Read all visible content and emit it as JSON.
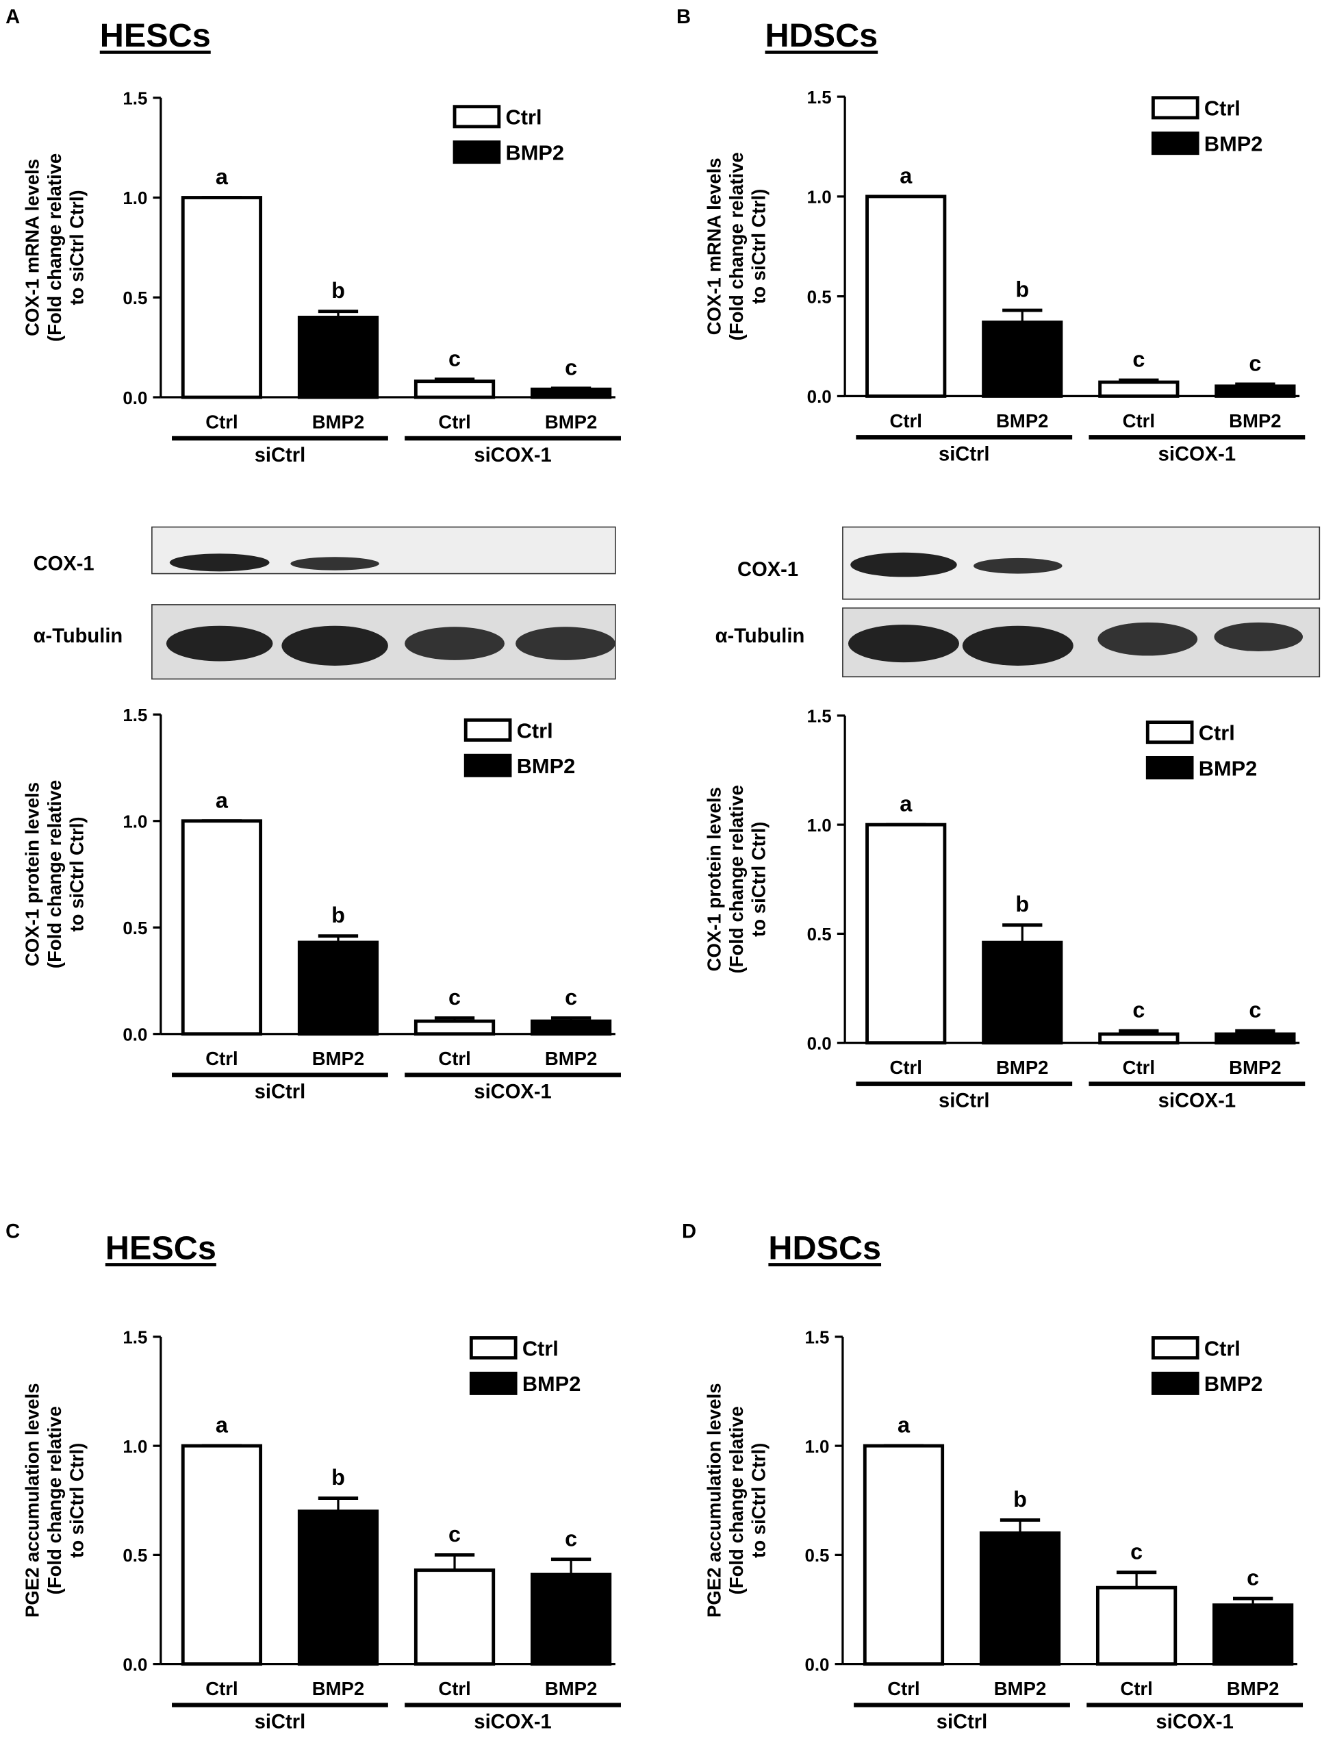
{
  "panels": [
    {
      "label": "A",
      "title": "HESCs"
    },
    {
      "label": "B",
      "title": "HDSCs"
    },
    {
      "label": "C",
      "title": "HESCs"
    },
    {
      "label": "D",
      "title": "HDSCs"
    }
  ],
  "blots": [
    {
      "rows": [
        "COX-1",
        "α-Tubulin"
      ]
    },
    {
      "rows": [
        "COX-1",
        "α-Tubulin"
      ]
    }
  ],
  "chart_data": [
    {
      "type": "bar",
      "ylabel": [
        "COX-1 mRNA levels",
        "(Fold change relative",
        "to siCtrl Ctrl)"
      ],
      "categories": [
        "Ctrl",
        "BMP2",
        "Ctrl",
        "BMP2"
      ],
      "groups": [
        "siCtrl",
        "siCOX-1"
      ],
      "series": [
        {
          "name": "Ctrl",
          "color": "#ffffff",
          "values": [
            1.0,
            null,
            0.08,
            null
          ],
          "errors": [
            0,
            null,
            0.01,
            null
          ]
        },
        {
          "name": "BMP2",
          "color": "#000000",
          "values": [
            null,
            0.4,
            null,
            0.04
          ],
          "errors": [
            null,
            0.03,
            null,
            0.005
          ]
        }
      ],
      "annotations": [
        "a",
        "b",
        "c",
        "c"
      ],
      "ylim": [
        0,
        1.5
      ],
      "yticks": [
        {
          "value": 0,
          "label": "0.0"
        },
        {
          "value": 0.5,
          "label": "0.5"
        },
        {
          "value": 1,
          "label": "1.0"
        },
        {
          "value": 1.5,
          "label": "1.5"
        }
      ]
    },
    {
      "type": "bar",
      "ylabel": [
        "COX-1 protein levels",
        "(Fold change relative",
        "to siCtrl Ctrl)"
      ],
      "categories": [
        "Ctrl",
        "BMP2",
        "Ctrl",
        "BMP2"
      ],
      "groups": [
        "siCtrl",
        "siCOX-1"
      ],
      "series": [
        {
          "name": "Ctrl",
          "color": "#ffffff",
          "values": [
            1.0,
            null,
            0.06,
            null
          ],
          "errors": [
            0,
            null,
            0.015,
            null
          ]
        },
        {
          "name": "BMP2",
          "color": "#000000",
          "values": [
            null,
            0.43,
            null,
            0.06
          ],
          "errors": [
            null,
            0.03,
            null,
            0.015
          ]
        }
      ],
      "annotations": [
        "a",
        "b",
        "c",
        "c"
      ],
      "ylim": [
        0,
        1.5
      ],
      "yticks": [
        {
          "value": 0,
          "label": "0.0"
        },
        {
          "value": 0.5,
          "label": "0.5"
        },
        {
          "value": 1,
          "label": "1.0"
        },
        {
          "value": 1.5,
          "label": "1.5"
        }
      ]
    },
    {
      "type": "bar",
      "ylabel": [
        "COX-1 mRNA levels",
        "(Fold change relative",
        "to siCtrl Ctrl)"
      ],
      "categories": [
        "Ctrl",
        "BMP2",
        "Ctrl",
        "BMP2"
      ],
      "groups": [
        "siCtrl",
        "siCOX-1"
      ],
      "series": [
        {
          "name": "Ctrl",
          "color": "#ffffff",
          "values": [
            1.0,
            null,
            0.07,
            null
          ],
          "errors": [
            0,
            null,
            0.01,
            null
          ]
        },
        {
          "name": "BMP2",
          "color": "#000000",
          "values": [
            null,
            0.37,
            null,
            0.05
          ],
          "errors": [
            null,
            0.06,
            null,
            0.01
          ]
        }
      ],
      "annotations": [
        "a",
        "b",
        "c",
        "c"
      ],
      "ylim": [
        0,
        1.5
      ],
      "yticks": [
        {
          "value": 0,
          "label": "0.0"
        },
        {
          "value": 0.5,
          "label": "0.5"
        },
        {
          "value": 1,
          "label": "1.0"
        },
        {
          "value": 1.5,
          "label": "1.5"
        }
      ]
    },
    {
      "type": "bar",
      "ylabel": [
        "COX-1 protein levels",
        "(Fold change relative",
        "to siCtrl Ctrl)"
      ],
      "categories": [
        "Ctrl",
        "BMP2",
        "Ctrl",
        "BMP2"
      ],
      "groups": [
        "siCtrl",
        "siCOX-1"
      ],
      "series": [
        {
          "name": "Ctrl",
          "color": "#ffffff",
          "values": [
            1.0,
            null,
            0.04,
            null
          ],
          "errors": [
            0,
            null,
            0.015,
            null
          ]
        },
        {
          "name": "BMP2",
          "color": "#000000",
          "values": [
            null,
            0.46,
            null,
            0.04
          ],
          "errors": [
            null,
            0.08,
            null,
            0.015
          ]
        }
      ],
      "annotations": [
        "a",
        "b",
        "c",
        "c"
      ],
      "ylim": [
        0,
        1.5
      ],
      "yticks": [
        {
          "value": 0,
          "label": "0.0"
        },
        {
          "value": 0.5,
          "label": "0.5"
        },
        {
          "value": 1,
          "label": "1.0"
        },
        {
          "value": 1.5,
          "label": "1.5"
        }
      ]
    },
    {
      "type": "bar",
      "ylabel": [
        "PGE2 accumulation levels",
        "(Fold change relative",
        "to siCtrl Ctrl)"
      ],
      "categories": [
        "Ctrl",
        "BMP2",
        "Ctrl",
        "BMP2"
      ],
      "groups": [
        "siCtrl",
        "siCOX-1"
      ],
      "series": [
        {
          "name": "Ctrl",
          "color": "#ffffff",
          "values": [
            1.0,
            null,
            0.43,
            null
          ],
          "errors": [
            0,
            null,
            0.07,
            null
          ]
        },
        {
          "name": "BMP2",
          "color": "#000000",
          "values": [
            null,
            0.7,
            null,
            0.41
          ],
          "errors": [
            null,
            0.06,
            null,
            0.07
          ]
        }
      ],
      "annotations": [
        "a",
        "b",
        "c",
        "c"
      ],
      "ylim": [
        0,
        1.5
      ],
      "yticks": [
        {
          "value": 0,
          "label": "0.0"
        },
        {
          "value": 0.5,
          "label": "0.5"
        },
        {
          "value": 1,
          "label": "1.0"
        },
        {
          "value": 1.5,
          "label": "1.5"
        }
      ]
    },
    {
      "type": "bar",
      "ylabel": [
        "PGE2 accumulation levels",
        "(Fold change relative",
        "to siCtrl Ctrl)"
      ],
      "categories": [
        "Ctrl",
        "BMP2",
        "Ctrl",
        "BMP2"
      ],
      "groups": [
        "siCtrl",
        "siCOX-1"
      ],
      "series": [
        {
          "name": "Ctrl",
          "color": "#ffffff",
          "values": [
            1.0,
            null,
            0.35,
            null
          ],
          "errors": [
            0,
            null,
            0.07,
            null
          ]
        },
        {
          "name": "BMP2",
          "color": "#000000",
          "values": [
            null,
            0.6,
            null,
            0.27
          ],
          "errors": [
            null,
            0.06,
            null,
            0.03
          ]
        }
      ],
      "annotations": [
        "a",
        "b",
        "c",
        "c"
      ],
      "ylim": [
        0,
        1.5
      ],
      "yticks": [
        {
          "value": 0,
          "label": "0.0"
        },
        {
          "value": 0.5,
          "label": "0.5"
        },
        {
          "value": 1,
          "label": "1.0"
        },
        {
          "value": 1.5,
          "label": "1.5"
        }
      ]
    }
  ]
}
